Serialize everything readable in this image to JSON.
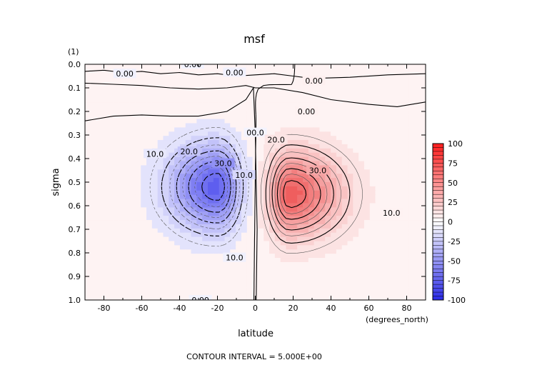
{
  "chart_data": {
    "type": "contour",
    "title": "msf",
    "units_label": "(1)",
    "xlabel": "latitude",
    "ylabel": "sigma",
    "x_units": "(degrees_north)",
    "footer": "CONTOUR INTERVAL = 5.000E+00",
    "xlim": [
      -90,
      90
    ],
    "ylim": [
      1.0,
      0.0
    ],
    "x_ticks": [
      "-80",
      "-60",
      "-40",
      "-20",
      "0",
      "20",
      "40",
      "60",
      "80"
    ],
    "y_ticks": [
      "0.0",
      "0.1",
      "0.2",
      "0.3",
      "0.4",
      "0.5",
      "0.6",
      "0.7",
      "0.8",
      "0.9",
      "1.0"
    ],
    "contour_interval": 5.0,
    "cells": [
      {
        "name": "southern-hemisphere-cell",
        "sign": "negative",
        "center_lat": -20,
        "center_sigma": 0.52,
        "peak": -45
      },
      {
        "name": "northern-hemisphere-cell",
        "sign": "positive",
        "center_lat": 18,
        "center_sigma": 0.55,
        "peak": 45
      }
    ],
    "contour_labels": [
      {
        "text": "0.00",
        "lat": -69,
        "sigma": 0.04
      },
      {
        "text": "0.00",
        "lat": -33,
        "sigma": 0.0
      },
      {
        "text": "0.00",
        "lat": -11,
        "sigma": 0.035
      },
      {
        "text": "0.00",
        "lat": 31,
        "sigma": 0.07
      },
      {
        "text": "0.00",
        "lat": 27,
        "sigma": 0.2
      },
      {
        "text": "0.00",
        "lat": -29,
        "sigma": 1.0
      },
      {
        "text": "00.0",
        "lat": 0,
        "sigma": 0.29
      },
      {
        "text": "10.0",
        "lat": -53,
        "sigma": 0.38
      },
      {
        "text": "20.0",
        "lat": -35,
        "sigma": 0.37
      },
      {
        "text": "30.0",
        "lat": -17,
        "sigma": 0.42
      },
      {
        "text": "10.0",
        "lat": -6,
        "sigma": 0.47
      },
      {
        "text": "10.0",
        "lat": -11,
        "sigma": 0.82
      },
      {
        "text": "20.0",
        "lat": 11,
        "sigma": 0.32
      },
      {
        "text": "30.0",
        "lat": 33,
        "sigma": 0.45
      },
      {
        "text": "10.0",
        "lat": 72,
        "sigma": 0.63
      }
    ],
    "colorbar": {
      "min": -100,
      "max": 100,
      "tick_labels": [
        "100",
        "75",
        "50",
        "25",
        "0",
        "-25",
        "-50",
        "-75",
        "-100"
      ],
      "neg_color": "#2a2ae8",
      "pos_color": "#e61c1c"
    }
  }
}
